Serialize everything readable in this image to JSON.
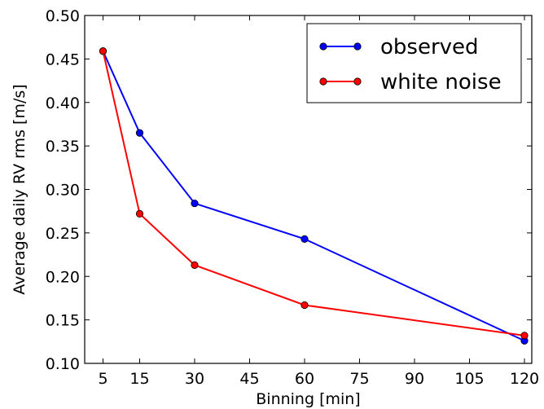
{
  "chart_data": {
    "type": "line",
    "xlabel": "Binning [min]",
    "ylabel": "Average daily RV rms [m/s]",
    "xlim": [
      0,
      122
    ],
    "ylim": [
      0.1,
      0.5
    ],
    "xticks": [
      5,
      15,
      30,
      45,
      60,
      75,
      90,
      105,
      120
    ],
    "yticks": [
      0.1,
      0.15,
      0.2,
      0.25,
      0.3,
      0.35,
      0.4,
      0.45,
      0.5
    ],
    "ytick_labels": [
      "0.10",
      "0.15",
      "0.20",
      "0.25",
      "0.30",
      "0.35",
      "0.40",
      "0.45",
      "0.50"
    ],
    "grid": false,
    "legend_position": "top-right",
    "x": [
      5,
      15,
      30,
      60,
      120
    ],
    "series": [
      {
        "name": "observed",
        "color": "#0000ff",
        "values": [
          0.459,
          0.365,
          0.284,
          0.243,
          0.126
        ]
      },
      {
        "name": "white noise",
        "color": "#ff0000",
        "values": [
          0.459,
          0.272,
          0.213,
          0.167,
          0.132
        ]
      }
    ]
  }
}
